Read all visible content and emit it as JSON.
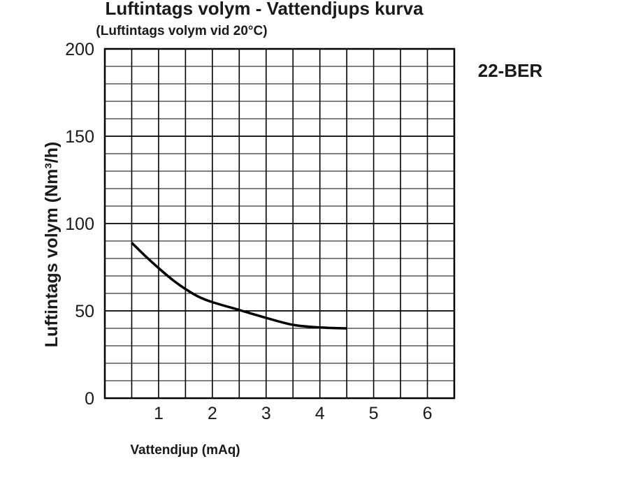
{
  "chart_data": {
    "type": "line",
    "title": "Luftintags volym - Vattendjups kurva",
    "subtitle": "(Luftintags volym vid 20°C)",
    "model": "22-BER",
    "xlabel": "Vattendjup (mAq)",
    "ylabel": "Luftintags volym (Nm³/h)",
    "xlim": [
      0,
      6.5
    ],
    "ylim": [
      0,
      200
    ],
    "x_ticks": [
      1,
      2,
      3,
      4,
      5,
      6
    ],
    "y_ticks": [
      0,
      50,
      100,
      150,
      200
    ],
    "grid": true,
    "x_minor_step": 0.5,
    "y_minor_step": 10,
    "series": [
      {
        "x": [
          0.5,
          0.75,
          1.0,
          1.25,
          1.5,
          1.75,
          2.0,
          2.5,
          3.0,
          3.5,
          4.0,
          4.5
        ],
        "y": [
          89,
          81.5,
          74.5,
          68,
          62.5,
          58,
          55,
          50.5,
          46,
          42,
          40.5,
          40
        ]
      }
    ],
    "colors": {
      "line": "#000000",
      "grid": "#000000",
      "text": "#1a1a1a"
    }
  }
}
